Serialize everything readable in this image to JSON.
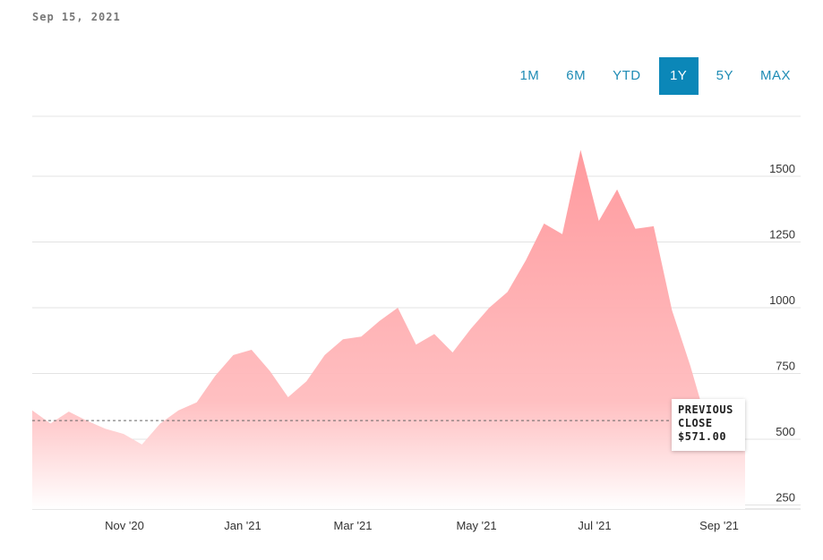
{
  "header": {
    "date": "Sep 15, 2021"
  },
  "ranges": {
    "items": [
      {
        "id": "1m",
        "label": "1M"
      },
      {
        "id": "6m",
        "label": "6M"
      },
      {
        "id": "ytd",
        "label": "YTD"
      },
      {
        "id": "1y",
        "label": "1Y",
        "active": true
      },
      {
        "id": "5y",
        "label": "5Y"
      },
      {
        "id": "max",
        "label": "MAX"
      }
    ]
  },
  "tooltip": {
    "line1": "PREVIOUS",
    "line2": "CLOSE",
    "value": "$571.00"
  },
  "colors": {
    "area": "#ff9a9e",
    "accent": "#0b87b8",
    "link": "#1f8cb5",
    "grid": "#e3e3e3"
  },
  "chart_data": {
    "type": "area",
    "title": "",
    "xlabel": "",
    "ylabel": "",
    "ylim": [
      250,
      1700
    ],
    "yticks": [
      250,
      500,
      750,
      1000,
      1250,
      1500
    ],
    "xticks": [
      "Nov '20",
      "Jan '21",
      "Mar '21",
      "May '21",
      "Jul '21",
      "Sep '21"
    ],
    "grid": true,
    "reference_line": {
      "label": "PREVIOUS CLOSE",
      "value": 571
    },
    "series": [
      {
        "x": [
          "Sep '20",
          "Oct '20",
          "Oct '20",
          "Oct '20",
          "Nov '20",
          "Nov '20",
          "Nov '20",
          "Dec '20",
          "Dec '20",
          "Dec '20",
          "Dec '20",
          "Jan '21",
          "Jan '21",
          "Jan '21",
          "Feb '21",
          "Feb '21",
          "Feb '21",
          "Mar '21",
          "Mar '21",
          "Mar '21",
          "Mar '21",
          "Apr '21",
          "Apr '21",
          "Apr '21",
          "Apr '21",
          "May '21",
          "May '21",
          "May '21",
          "Jun '21",
          "Jun '21",
          "Jun '21",
          "Jun '21",
          "Jul '21",
          "Jul '21",
          "Jul '21",
          "Aug '21",
          "Aug '21",
          "Aug '21",
          "Sep '21",
          "Sep '21"
        ],
        "values": [
          610,
          560,
          605,
          570,
          540,
          520,
          480,
          560,
          610,
          640,
          740,
          820,
          840,
          760,
          660,
          720,
          820,
          880,
          890,
          950,
          1000,
          860,
          900,
          830,
          920,
          1000,
          1060,
          1180,
          1320,
          1280,
          1600,
          1330,
          1450,
          1300,
          1310,
          990,
          780,
          540,
          600,
          470
        ]
      }
    ]
  }
}
